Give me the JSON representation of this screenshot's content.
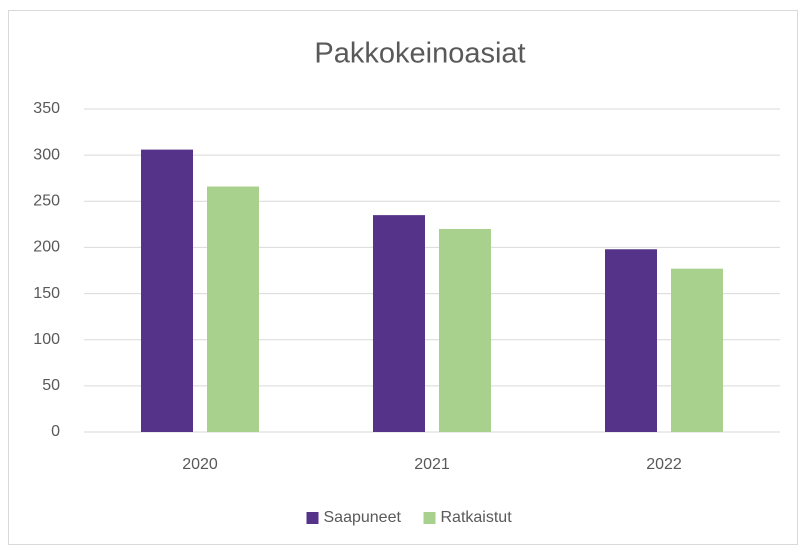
{
  "chart_data": {
    "type": "bar",
    "title": "Pakkokeinoasiat",
    "categories": [
      "2020",
      "2021",
      "2022"
    ],
    "series": [
      {
        "name": "Saapuneet",
        "color": "#543388",
        "values": [
          306,
          235,
          198
        ]
      },
      {
        "name": "Ratkaistut",
        "color": "#a9d18e",
        "values": [
          266,
          220,
          177
        ]
      }
    ],
    "ylim": [
      0,
      350
    ],
    "yticks": [
      0,
      50,
      100,
      150,
      200,
      250,
      300,
      350
    ],
    "grid": true,
    "legend": "bottom"
  }
}
